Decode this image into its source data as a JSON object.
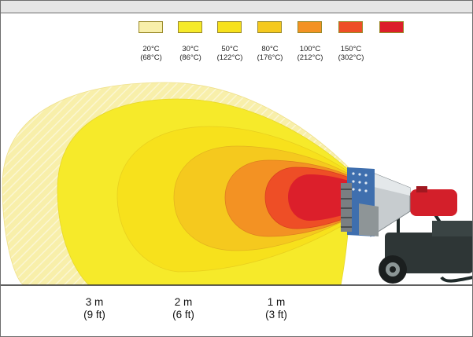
{
  "legend": [
    {
      "color": "#f8efaa",
      "c": "20°C",
      "f": "(68°C)"
    },
    {
      "color": "#f6ea2a",
      "c": "30°C",
      "f": "(86°C)"
    },
    {
      "color": "#f7e11c",
      "c": "50°C",
      "f": "(122°C)"
    },
    {
      "color": "#f5c91e",
      "c": "80°C",
      "f": "(176°C)"
    },
    {
      "color": "#f39223",
      "c": "100°C",
      "f": "(212°C)"
    },
    {
      "color": "#ee4e26",
      "c": "150°C",
      "f": "(302°C)"
    },
    {
      "color": "#dc1f2b",
      "c": "",
      "f": ""
    }
  ],
  "distances": [
    {
      "m": "3 m",
      "ft": "(9 ft)"
    },
    {
      "m": "2 m",
      "ft": "(6 ft)"
    },
    {
      "m": "1 m",
      "ft": "(3 ft)"
    }
  ],
  "icons": {
    "heater": "hot-air-heater-icon"
  }
}
